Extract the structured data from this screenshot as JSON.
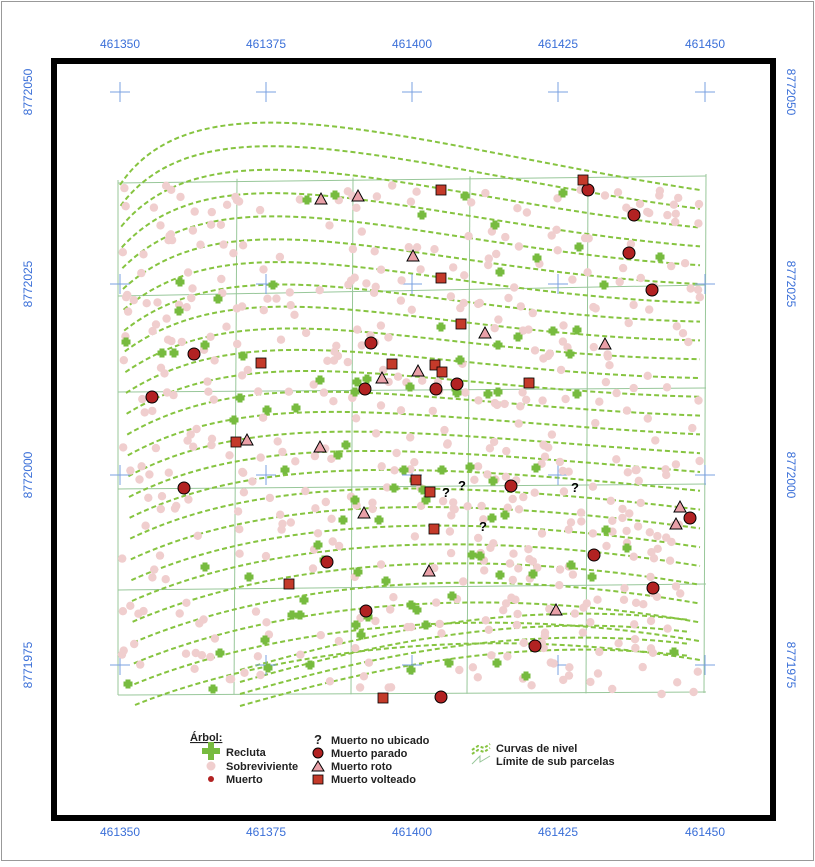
{
  "map": {
    "x_ticks": [
      "461350",
      "461375",
      "461400",
      "461425",
      "461450"
    ],
    "y_ticks": [
      "8772050",
      "8772025",
      "8772000",
      "8771975"
    ],
    "colors": {
      "recluta": "#77bb3f",
      "sobreviviente": "#f0cece",
      "muerto": "#b22222",
      "tick_labels": "#3a6fd8",
      "crosshair": "#7aa0e0",
      "contour": "#86c440",
      "subplot_grid": "#98c79a",
      "frame": "#000000"
    }
  },
  "legend": {
    "title": "Árbol:",
    "recluta": "Recluta",
    "sobreviviente": "Sobreviviente",
    "muerto": "Muerto",
    "muerto_no_ubicado": "Muerto no ubicado",
    "muerto_parado": "Muerto parado",
    "muerto_roto": "Muerto roto",
    "muerto_volteado": "Muerto volteado",
    "curvas": "Curvas de nivel",
    "limite": "Límite de sub parcelas",
    "question_glyph": "?"
  }
}
